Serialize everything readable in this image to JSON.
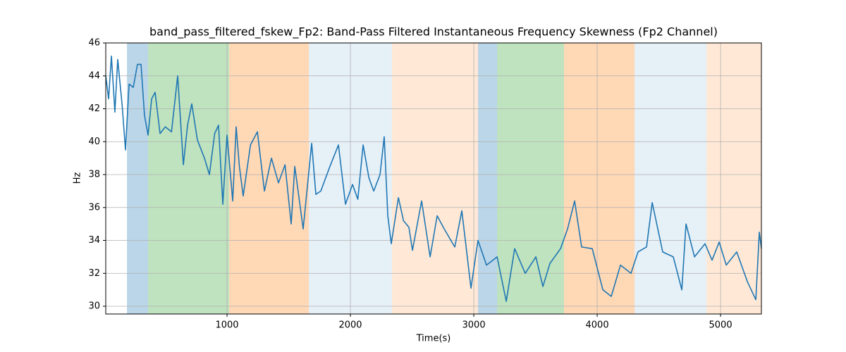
{
  "chart_data": {
    "type": "line",
    "title": "band_pass_filtered_fskew_Fp2: Band-Pass Filtered Instantaneous Frequency Skewness (Fp2 Channel)",
    "xlabel": "Time(s)",
    "ylabel": "Hz",
    "xlim": [
      17,
      5331
    ],
    "ylim": [
      29.53,
      46
    ],
    "xticks": [
      1000,
      2000,
      3000,
      4000,
      5000
    ],
    "yticks": [
      30,
      32,
      34,
      36,
      38,
      40,
      42,
      44,
      46
    ],
    "grid": true,
    "spans": [
      {
        "start": 189,
        "end": 360,
        "color": "#1f77b4",
        "alpha": 0.3
      },
      {
        "start": 360,
        "end": 1017,
        "color": "#2ca02c",
        "alpha": 0.3
      },
      {
        "start": 1017,
        "end": 1663,
        "color": "#ff7f0e",
        "alpha": 0.3
      },
      {
        "start": 1663,
        "end": 2337,
        "color": "#1f77b4",
        "alpha": 0.11
      },
      {
        "start": 2337,
        "end": 3034,
        "color": "#ff7f0e",
        "alpha": 0.17
      },
      {
        "start": 3034,
        "end": 3189,
        "color": "#1f77b4",
        "alpha": 0.3
      },
      {
        "start": 3189,
        "end": 3731,
        "color": "#2ca02c",
        "alpha": 0.3
      },
      {
        "start": 3731,
        "end": 4303,
        "color": "#ff7f0e",
        "alpha": 0.3
      },
      {
        "start": 4303,
        "end": 4886,
        "color": "#1f77b4",
        "alpha": 0.11
      },
      {
        "start": 4886,
        "end": 5331,
        "color": "#ff7f0e",
        "alpha": 0.17
      }
    ],
    "x": [
      17,
      40,
      63,
      91,
      114,
      150,
      177,
      206,
      240,
      274,
      303,
      331,
      360,
      389,
      417,
      457,
      500,
      550,
      600,
      646,
      680,
      714,
      760,
      817,
      857,
      900,
      931,
      966,
      1000,
      1046,
      1074,
      1100,
      1131,
      1190,
      1246,
      1303,
      1360,
      1417,
      1470,
      1520,
      1549,
      1617,
      1686,
      1720,
      1760,
      1834,
      1903,
      1960,
      2017,
      2060,
      2103,
      2150,
      2189,
      2240,
      2274,
      2303,
      2331,
      2389,
      2430,
      2474,
      2503,
      2577,
      2646,
      2703,
      2760,
      2846,
      2903,
      2977,
      3034,
      3103,
      3189,
      3263,
      3331,
      3417,
      3503,
      3560,
      3617,
      3703,
      3760,
      3817,
      3874,
      3960,
      4046,
      4114,
      4189,
      4274,
      4331,
      4400,
      4446,
      4531,
      4617,
      4686,
      4720,
      4789,
      4874,
      4931,
      4989,
      5046,
      5131,
      5217,
      5286,
      5314,
      5331
    ],
    "series": [
      {
        "name": "fskew_Fp2",
        "color": "#1f77b4",
        "values": [
          44,
          42.6,
          45.2,
          41.8,
          45,
          42.2,
          39.5,
          43.5,
          43.3,
          44.7,
          44.7,
          41.6,
          40.4,
          42.6,
          43,
          40.5,
          40.9,
          40.6,
          44,
          38.6,
          41,
          42.3,
          40.1,
          39,
          38,
          40.5,
          41,
          36.2,
          40.4,
          36.4,
          40.9,
          38.5,
          36.7,
          39.8,
          40.6,
          37,
          39,
          37.5,
          38.6,
          35,
          38.5,
          34.7,
          39.9,
          36.8,
          37,
          38.5,
          39.8,
          36.2,
          37.4,
          36.5,
          39.8,
          37.8,
          37,
          38,
          40.3,
          35.5,
          33.8,
          36.6,
          35.2,
          34.8,
          33.4,
          36.4,
          33,
          35.5,
          34.7,
          33.6,
          35.8,
          31.1,
          34,
          32.5,
          33,
          30.3,
          33.5,
          32,
          33,
          31.2,
          32.6,
          33.5,
          34.7,
          36.4,
          33.6,
          33.5,
          31,
          30.6,
          32.5,
          32,
          33.3,
          33.6,
          36.3,
          33.3,
          33,
          31,
          35,
          33,
          33.8,
          32.8,
          33.9,
          32.5,
          33.3,
          31.5,
          30.4,
          34.5,
          33.5
        ]
      }
    ]
  }
}
